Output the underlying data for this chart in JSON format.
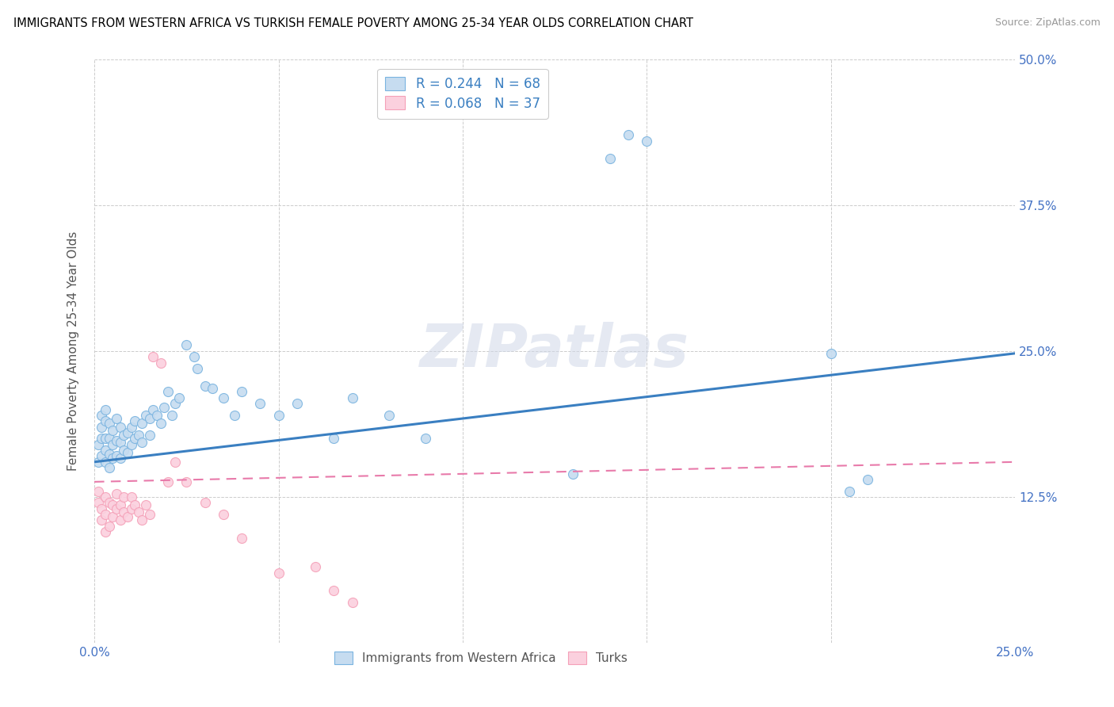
{
  "title": "IMMIGRANTS FROM WESTERN AFRICA VS TURKISH FEMALE POVERTY AMONG 25-34 YEAR OLDS CORRELATION CHART",
  "source": "Source: ZipAtlas.com",
  "ylabel": "Female Poverty Among 25-34 Year Olds",
  "xlim": [
    0.0,
    0.25
  ],
  "ylim": [
    0.0,
    0.5
  ],
  "legend_label1": "Immigrants from Western Africa",
  "legend_label2": "Turks",
  "R1": 0.244,
  "N1": 68,
  "R2": 0.068,
  "N2": 37,
  "blue_color": "#7ab4e0",
  "blue_fill": "#c6dcf0",
  "pink_color": "#f5a0b8",
  "pink_fill": "#fbd0de",
  "line_blue": "#3a7fc1",
  "line_pink": "#e87aaa",
  "blue_line_start_y": 0.155,
  "blue_line_end_y": 0.248,
  "pink_line_start_y": 0.138,
  "pink_line_end_y": 0.155,
  "blue_scatter_x": [
    0.001,
    0.001,
    0.002,
    0.002,
    0.002,
    0.002,
    0.003,
    0.003,
    0.003,
    0.003,
    0.003,
    0.004,
    0.004,
    0.004,
    0.004,
    0.005,
    0.005,
    0.005,
    0.006,
    0.006,
    0.006,
    0.007,
    0.007,
    0.007,
    0.008,
    0.008,
    0.009,
    0.009,
    0.01,
    0.01,
    0.011,
    0.011,
    0.012,
    0.013,
    0.013,
    0.014,
    0.015,
    0.015,
    0.016,
    0.017,
    0.018,
    0.019,
    0.02,
    0.021,
    0.022,
    0.023,
    0.025,
    0.027,
    0.028,
    0.03,
    0.032,
    0.035,
    0.038,
    0.04,
    0.045,
    0.05,
    0.055,
    0.065,
    0.07,
    0.08,
    0.09,
    0.13,
    0.14,
    0.145,
    0.15,
    0.2,
    0.205,
    0.21
  ],
  "blue_scatter_y": [
    0.155,
    0.17,
    0.16,
    0.175,
    0.185,
    0.195,
    0.155,
    0.165,
    0.175,
    0.19,
    0.2,
    0.15,
    0.162,
    0.175,
    0.188,
    0.158,
    0.17,
    0.182,
    0.16,
    0.173,
    0.192,
    0.158,
    0.172,
    0.185,
    0.165,
    0.178,
    0.163,
    0.18,
    0.17,
    0.185,
    0.175,
    0.19,
    0.178,
    0.172,
    0.188,
    0.195,
    0.178,
    0.192,
    0.2,
    0.195,
    0.188,
    0.202,
    0.215,
    0.195,
    0.205,
    0.21,
    0.255,
    0.245,
    0.235,
    0.22,
    0.218,
    0.21,
    0.195,
    0.215,
    0.205,
    0.195,
    0.205,
    0.175,
    0.21,
    0.195,
    0.175,
    0.145,
    0.415,
    0.435,
    0.43,
    0.248,
    0.13,
    0.14
  ],
  "pink_scatter_x": [
    0.001,
    0.001,
    0.002,
    0.002,
    0.003,
    0.003,
    0.003,
    0.004,
    0.004,
    0.005,
    0.005,
    0.006,
    0.006,
    0.007,
    0.007,
    0.008,
    0.008,
    0.009,
    0.01,
    0.01,
    0.011,
    0.012,
    0.013,
    0.014,
    0.015,
    0.016,
    0.018,
    0.02,
    0.022,
    0.025,
    0.03,
    0.035,
    0.04,
    0.05,
    0.06,
    0.065,
    0.07
  ],
  "pink_scatter_y": [
    0.12,
    0.13,
    0.105,
    0.115,
    0.095,
    0.11,
    0.125,
    0.1,
    0.12,
    0.108,
    0.118,
    0.115,
    0.128,
    0.105,
    0.118,
    0.112,
    0.125,
    0.108,
    0.115,
    0.125,
    0.118,
    0.112,
    0.105,
    0.118,
    0.11,
    0.245,
    0.24,
    0.138,
    0.155,
    0.138,
    0.12,
    0.11,
    0.09,
    0.06,
    0.065,
    0.045,
    0.035
  ]
}
